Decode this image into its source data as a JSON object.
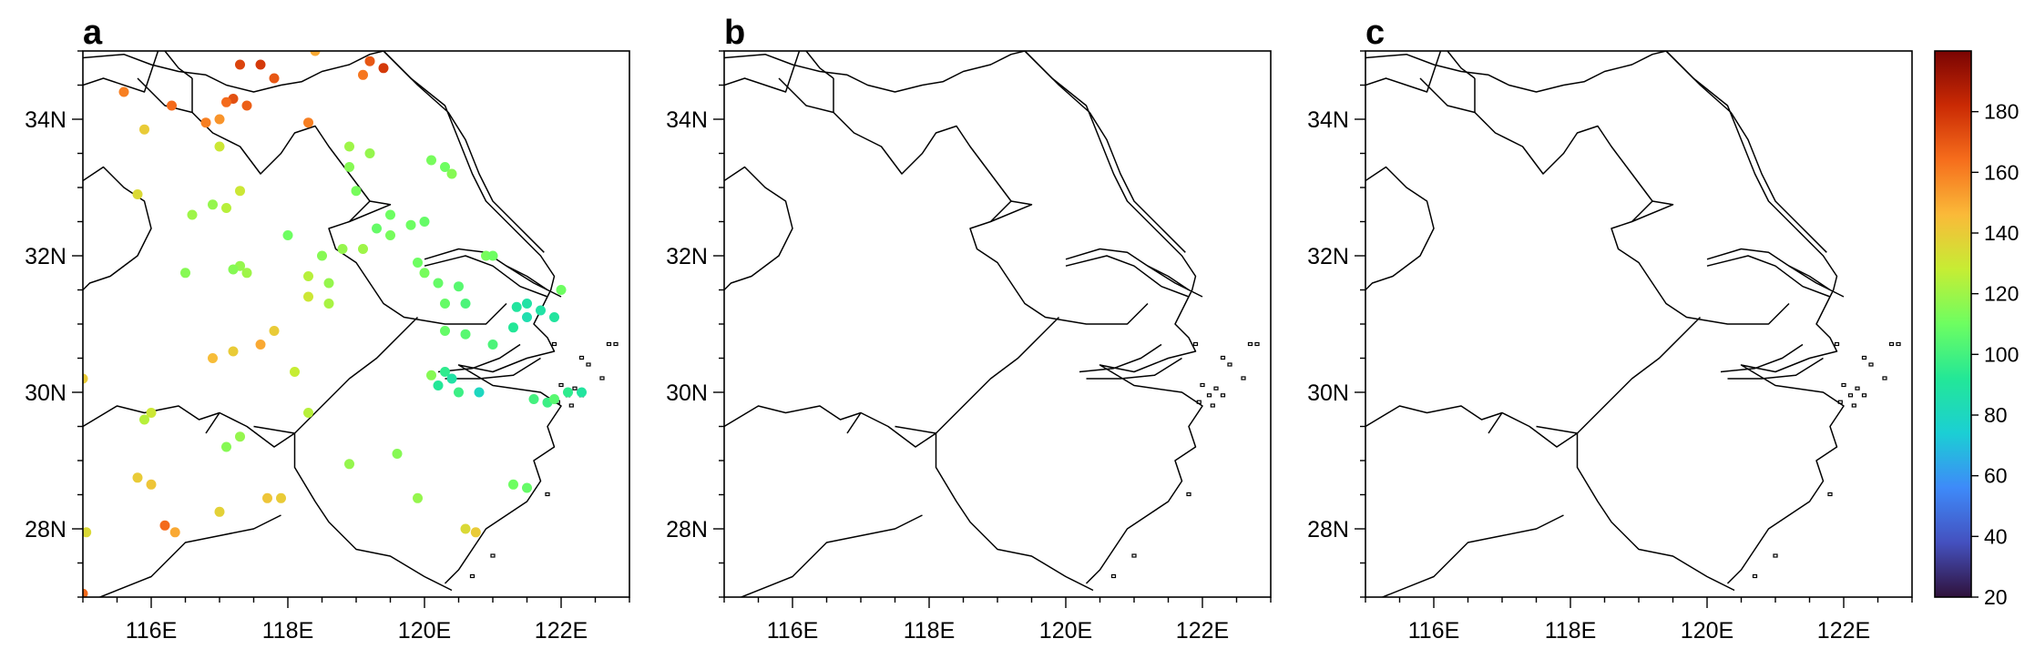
{
  "panels": [
    {
      "id": "a",
      "label": "a",
      "has_points": true
    },
    {
      "id": "b",
      "label": "b",
      "has_points": false
    },
    {
      "id": "c",
      "label": "c",
      "has_points": false
    }
  ],
  "map_extent": {
    "lon": [
      115,
      123
    ],
    "lat": [
      27,
      35
    ]
  },
  "x_ticks": [
    {
      "value": 116,
      "label": "116E"
    },
    {
      "value": 118,
      "label": "118E"
    },
    {
      "value": 120,
      "label": "120E"
    },
    {
      "value": 122,
      "label": "122E"
    }
  ],
  "y_ticks": [
    {
      "value": 28,
      "label": "28N"
    },
    {
      "value": 30,
      "label": "30N"
    },
    {
      "value": 32,
      "label": "32N"
    },
    {
      "value": 34,
      "label": "34N"
    }
  ],
  "colorbar": {
    "range": [
      20,
      200
    ],
    "ticks": [
      20,
      40,
      60,
      80,
      100,
      120,
      140,
      160,
      180
    ],
    "colormap": "turbo"
  },
  "stations": [
    {
      "lon": 115.6,
      "lat": 34.4,
      "v": 160
    },
    {
      "lon": 116.3,
      "lat": 34.2,
      "v": 165
    },
    {
      "lon": 117.3,
      "lat": 34.8,
      "v": 175
    },
    {
      "lon": 117.6,
      "lat": 34.8,
      "v": 178
    },
    {
      "lon": 117.8,
      "lat": 34.6,
      "v": 170
    },
    {
      "lon": 117.2,
      "lat": 34.3,
      "v": 172
    },
    {
      "lon": 117.4,
      "lat": 34.2,
      "v": 168
    },
    {
      "lon": 117.1,
      "lat": 34.25,
      "v": 165
    },
    {
      "lon": 116.8,
      "lat": 33.95,
      "v": 160
    },
    {
      "lon": 117.0,
      "lat": 34.0,
      "v": 155
    },
    {
      "lon": 118.3,
      "lat": 33.95,
      "v": 160
    },
    {
      "lon": 118.4,
      "lat": 35.0,
      "v": 150
    },
    {
      "lon": 119.2,
      "lat": 34.85,
      "v": 170
    },
    {
      "lon": 119.4,
      "lat": 34.75,
      "v": 178
    },
    {
      "lon": 119.1,
      "lat": 34.65,
      "v": 162
    },
    {
      "lon": 115.9,
      "lat": 33.85,
      "v": 140
    },
    {
      "lon": 117.0,
      "lat": 33.6,
      "v": 130
    },
    {
      "lon": 115.8,
      "lat": 32.9,
      "v": 135
    },
    {
      "lon": 117.3,
      "lat": 32.95,
      "v": 130
    },
    {
      "lon": 117.1,
      "lat": 32.7,
      "v": 125
    },
    {
      "lon": 116.6,
      "lat": 32.6,
      "v": 120
    },
    {
      "lon": 116.9,
      "lat": 32.75,
      "v": 118
    },
    {
      "lon": 118.0,
      "lat": 32.3,
      "v": 110
    },
    {
      "lon": 117.3,
      "lat": 31.85,
      "v": 118
    },
    {
      "lon": 117.2,
      "lat": 31.8,
      "v": 115
    },
    {
      "lon": 117.4,
      "lat": 31.75,
      "v": 120
    },
    {
      "lon": 116.5,
      "lat": 31.75,
      "v": 115
    },
    {
      "lon": 118.9,
      "lat": 33.6,
      "v": 120
    },
    {
      "lon": 119.2,
      "lat": 33.5,
      "v": 118
    },
    {
      "lon": 118.9,
      "lat": 33.3,
      "v": 115
    },
    {
      "lon": 120.1,
      "lat": 33.4,
      "v": 112
    },
    {
      "lon": 120.3,
      "lat": 33.3,
      "v": 110
    },
    {
      "lon": 120.4,
      "lat": 33.2,
      "v": 115
    },
    {
      "lon": 119.0,
      "lat": 32.95,
      "v": 112
    },
    {
      "lon": 119.5,
      "lat": 32.6,
      "v": 110
    },
    {
      "lon": 119.3,
      "lat": 32.4,
      "v": 108
    },
    {
      "lon": 119.5,
      "lat": 32.3,
      "v": 112
    },
    {
      "lon": 118.8,
      "lat": 32.1,
      "v": 118
    },
    {
      "lon": 118.5,
      "lat": 32.0,
      "v": 115
    },
    {
      "lon": 119.1,
      "lat": 32.1,
      "v": 120
    },
    {
      "lon": 118.3,
      "lat": 31.7,
      "v": 125
    },
    {
      "lon": 118.6,
      "lat": 31.6,
      "v": 118
    },
    {
      "lon": 118.3,
      "lat": 31.4,
      "v": 130
    },
    {
      "lon": 118.6,
      "lat": 31.3,
      "v": 122
    },
    {
      "lon": 119.8,
      "lat": 32.45,
      "v": 110
    },
    {
      "lon": 120.0,
      "lat": 32.5,
      "v": 108
    },
    {
      "lon": 119.9,
      "lat": 31.9,
      "v": 110
    },
    {
      "lon": 120.0,
      "lat": 31.75,
      "v": 112
    },
    {
      "lon": 120.2,
      "lat": 31.6,
      "v": 108
    },
    {
      "lon": 120.5,
      "lat": 31.55,
      "v": 105
    },
    {
      "lon": 120.6,
      "lat": 31.3,
      "v": 102
    },
    {
      "lon": 120.3,
      "lat": 31.3,
      "v": 108
    },
    {
      "lon": 120.9,
      "lat": 32.0,
      "v": 112
    },
    {
      "lon": 121.0,
      "lat": 32.0,
      "v": 110
    },
    {
      "lon": 121.35,
      "lat": 31.25,
      "v": 90
    },
    {
      "lon": 121.5,
      "lat": 31.3,
      "v": 88
    },
    {
      "lon": 121.5,
      "lat": 31.1,
      "v": 85
    },
    {
      "lon": 121.7,
      "lat": 31.2,
      "v": 88
    },
    {
      "lon": 121.9,
      "lat": 31.1,
      "v": 90
    },
    {
      "lon": 121.3,
      "lat": 30.95,
      "v": 92
    },
    {
      "lon": 122.0,
      "lat": 31.5,
      "v": 110
    },
    {
      "lon": 121.0,
      "lat": 30.7,
      "v": 102
    },
    {
      "lon": 120.3,
      "lat": 30.9,
      "v": 108
    },
    {
      "lon": 120.6,
      "lat": 30.85,
      "v": 105
    },
    {
      "lon": 120.3,
      "lat": 30.3,
      "v": 95
    },
    {
      "lon": 120.4,
      "lat": 30.2,
      "v": 88
    },
    {
      "lon": 120.2,
      "lat": 30.1,
      "v": 92
    },
    {
      "lon": 120.5,
      "lat": 30.0,
      "v": 98
    },
    {
      "lon": 120.8,
      "lat": 30.0,
      "v": 80
    },
    {
      "lon": 120.1,
      "lat": 30.25,
      "v": 115
    },
    {
      "lon": 121.6,
      "lat": 29.9,
      "v": 100
    },
    {
      "lon": 121.8,
      "lat": 29.85,
      "v": 98
    },
    {
      "lon": 122.1,
      "lat": 30.0,
      "v": 95
    },
    {
      "lon": 122.3,
      "lat": 30.0,
      "v": 90
    },
    {
      "lon": 121.9,
      "lat": 29.9,
      "v": 105
    },
    {
      "lon": 117.6,
      "lat": 30.7,
      "v": 150
    },
    {
      "lon": 117.2,
      "lat": 30.6,
      "v": 140
    },
    {
      "lon": 117.8,
      "lat": 30.9,
      "v": 140
    },
    {
      "lon": 116.9,
      "lat": 30.5,
      "v": 145
    },
    {
      "lon": 115.0,
      "lat": 30.2,
      "v": 140
    },
    {
      "lon": 116.0,
      "lat": 29.7,
      "v": 130
    },
    {
      "lon": 115.9,
      "lat": 29.6,
      "v": 125
    },
    {
      "lon": 117.3,
      "lat": 29.35,
      "v": 118
    },
    {
      "lon": 117.1,
      "lat": 29.2,
      "v": 115
    },
    {
      "lon": 118.9,
      "lat": 28.95,
      "v": 118
    },
    {
      "lon": 119.6,
      "lat": 29.1,
      "v": 115
    },
    {
      "lon": 118.3,
      "lat": 29.7,
      "v": 125
    },
    {
      "lon": 118.1,
      "lat": 30.3,
      "v": 128
    },
    {
      "lon": 115.8,
      "lat": 28.75,
      "v": 140
    },
    {
      "lon": 116.0,
      "lat": 28.65,
      "v": 142
    },
    {
      "lon": 117.0,
      "lat": 28.25,
      "v": 138
    },
    {
      "lon": 117.7,
      "lat": 28.45,
      "v": 142
    },
    {
      "lon": 117.9,
      "lat": 28.45,
      "v": 140
    },
    {
      "lon": 116.2,
      "lat": 28.05,
      "v": 165
    },
    {
      "lon": 116.35,
      "lat": 27.95,
      "v": 150
    },
    {
      "lon": 115.05,
      "lat": 27.95,
      "v": 135
    },
    {
      "lon": 119.9,
      "lat": 28.45,
      "v": 118
    },
    {
      "lon": 120.6,
      "lat": 28.0,
      "v": 135
    },
    {
      "lon": 120.75,
      "lat": 27.95,
      "v": 140
    },
    {
      "lon": 121.3,
      "lat": 28.65,
      "v": 110
    },
    {
      "lon": 121.5,
      "lat": 28.6,
      "v": 108
    },
    {
      "lon": 115.0,
      "lat": 27.05,
      "v": 165
    }
  ]
}
